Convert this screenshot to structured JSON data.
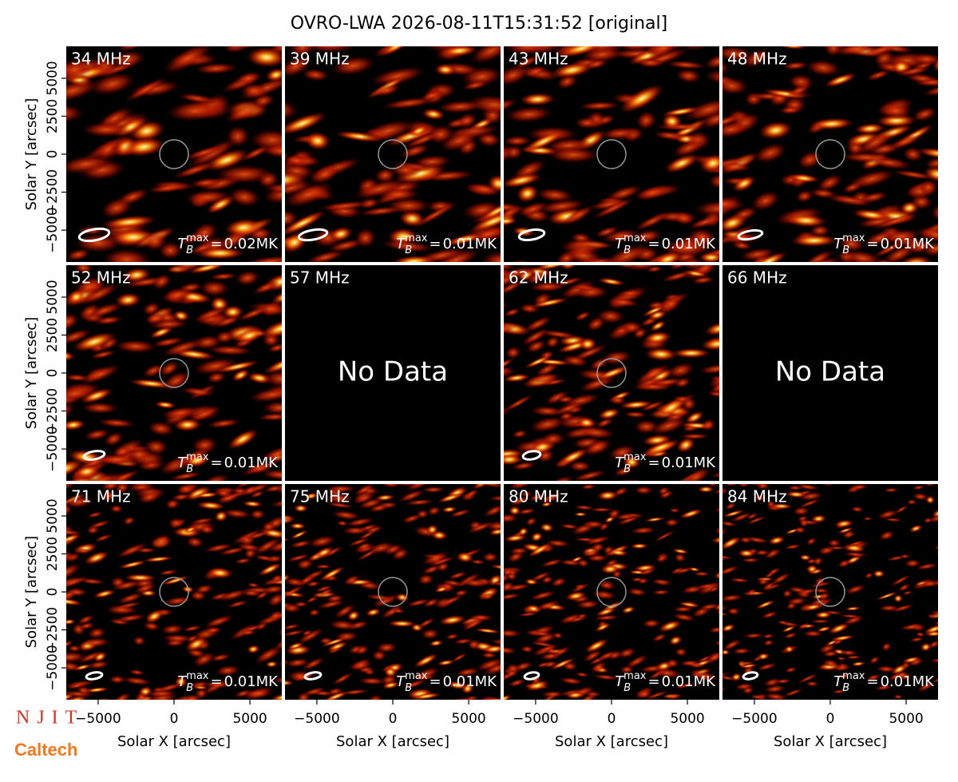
{
  "chart_data": {
    "type": "image-grid",
    "title": "OVRO-LWA 2026-08-11T15:31:52 [original]",
    "xlabel": "Solar X [arcsec]",
    "ylabel": "Solar Y [arcsec]",
    "xlim": [
      -7100,
      7100
    ],
    "ylim": [
      -7100,
      7100
    ],
    "xticks": [
      {
        "value": -5000,
        "label": "−5000"
      },
      0,
      5000
    ],
    "yticks": [
      {
        "value": -5000,
        "label": "−5000"
      },
      {
        "value": -2500,
        "label": "−2500"
      },
      0,
      2500,
      5000
    ],
    "no_data": "No Data",
    "tb_symbol": "T",
    "tb_sub": "B",
    "tb_sup": "max",
    "tb_equals": "=",
    "logos": [
      "NJIT",
      "Caltech"
    ],
    "panels": [
      {
        "label": "34 MHz",
        "has_data": true,
        "tb_max": "0.02MK"
      },
      {
        "label": "39 MHz",
        "has_data": true,
        "tb_max": "0.01MK"
      },
      {
        "label": "43 MHz",
        "has_data": true,
        "tb_max": "0.01MK"
      },
      {
        "label": "48 MHz",
        "has_data": true,
        "tb_max": "0.01MK"
      },
      {
        "label": "52 MHz",
        "has_data": true,
        "tb_max": "0.01MK"
      },
      {
        "label": "57 MHz",
        "has_data": false
      },
      {
        "label": "62 MHz",
        "has_data": true,
        "tb_max": "0.01MK"
      },
      {
        "label": "66 MHz",
        "has_data": false
      },
      {
        "label": "71 MHz",
        "has_data": true,
        "tb_max": "0.01MK"
      },
      {
        "label": "75 MHz",
        "has_data": true,
        "tb_max": "0.01MK"
      },
      {
        "label": "80 MHz",
        "has_data": true,
        "tb_max": "0.01MK"
      },
      {
        "label": "84 MHz",
        "has_data": true,
        "tb_max": "0.01MK"
      }
    ]
  }
}
